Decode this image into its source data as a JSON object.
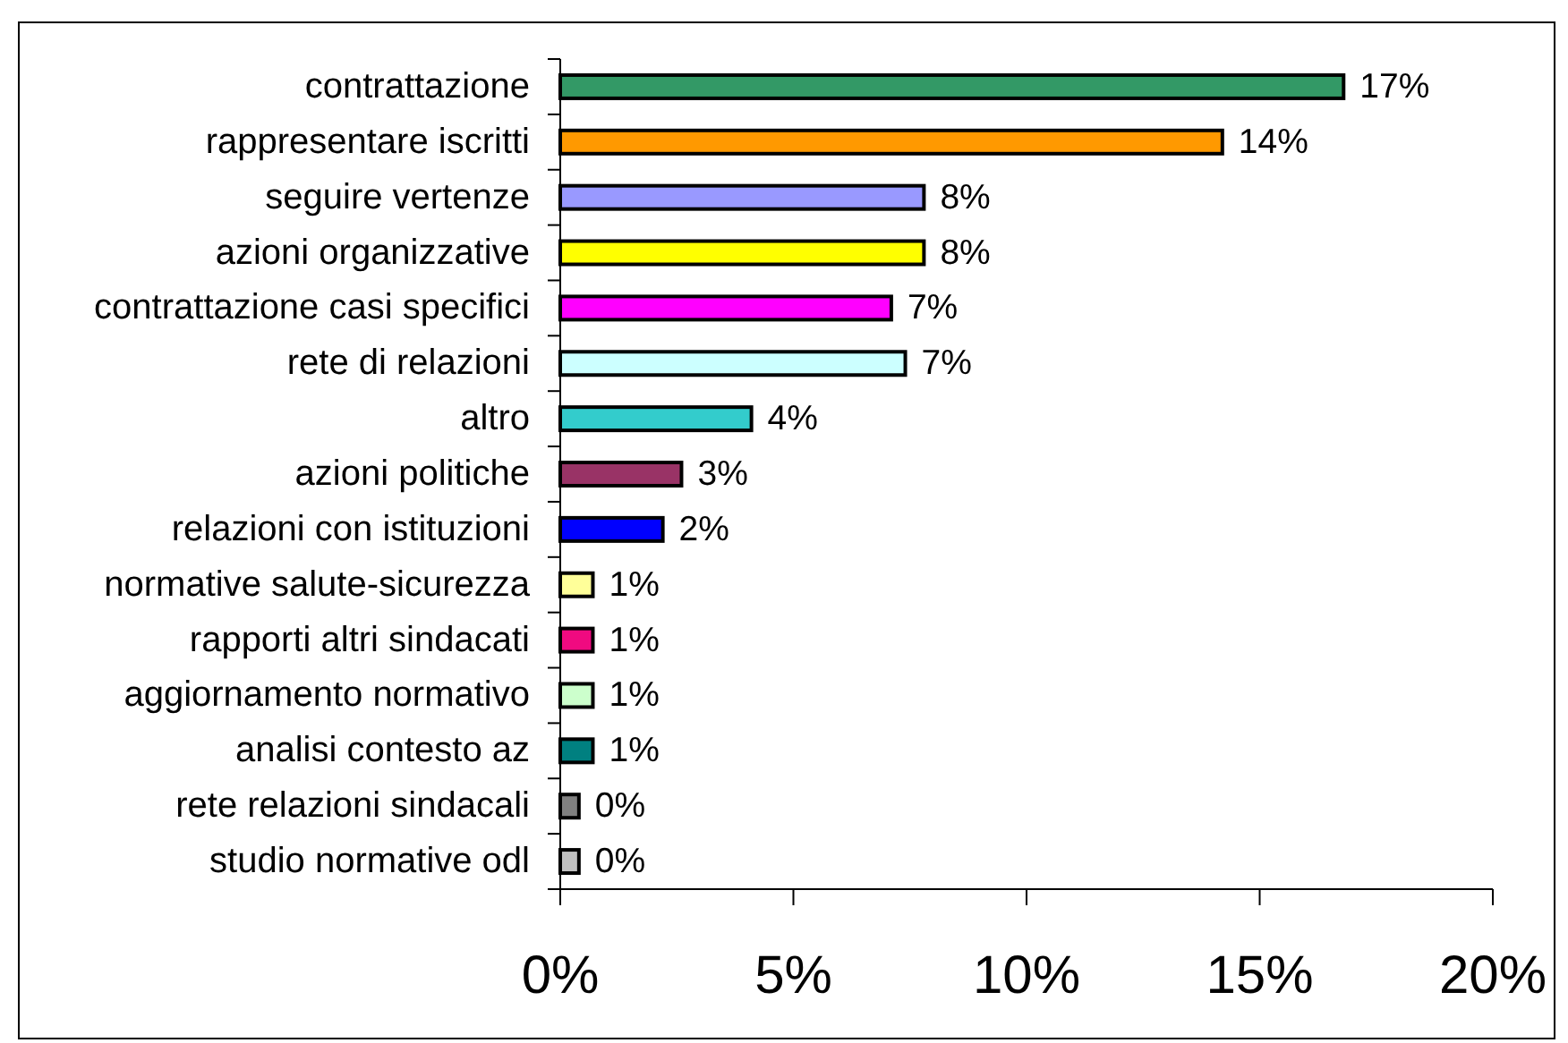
{
  "chart_data": {
    "type": "bar",
    "orientation": "horizontal",
    "categories": [
      "contrattazione",
      "rappresentare iscritti",
      "seguire vertenze",
      "azioni organizzative",
      "contrattazione casi specifici",
      "rete di relazioni",
      "altro",
      "azioni politiche",
      "relazioni con istituzioni",
      "normative salute-sicurezza",
      "rapporti altri sindacati",
      "aggiornamento normativo",
      "analisi contesto az",
      "rete relazioni sindacali",
      "studio normative odl"
    ],
    "values": [
      16.8,
      14.2,
      7.8,
      7.8,
      7.1,
      7.4,
      4.1,
      2.6,
      2.2,
      0.7,
      0.7,
      0.7,
      0.7,
      0.4,
      0.4
    ],
    "colors": [
      "#339966",
      "#ff9900",
      "#9999ff",
      "#ffff00",
      "#ff00ff",
      "#ccffff",
      "#33cccc",
      "#993366",
      "#0000ff",
      "#ffff99",
      "#f00a80",
      "#ccffcc",
      "#008080",
      "#808080",
      "#c0c0c0"
    ],
    "value_labels": [
      "17%",
      "14%",
      "8%",
      "8%",
      "7%",
      "7%",
      "4%",
      "3%",
      "2%",
      "1%",
      "1%",
      "1%",
      "1%",
      "0%",
      "0%"
    ],
    "xlim": [
      0,
      20
    ],
    "xticks": [
      {
        "value": 0,
        "label": "0%"
      },
      {
        "value": 5,
        "label": "5%"
      },
      {
        "value": 10,
        "label": "10%"
      },
      {
        "value": 15,
        "label": "15%"
      },
      {
        "value": 20,
        "label": "20%"
      }
    ]
  }
}
